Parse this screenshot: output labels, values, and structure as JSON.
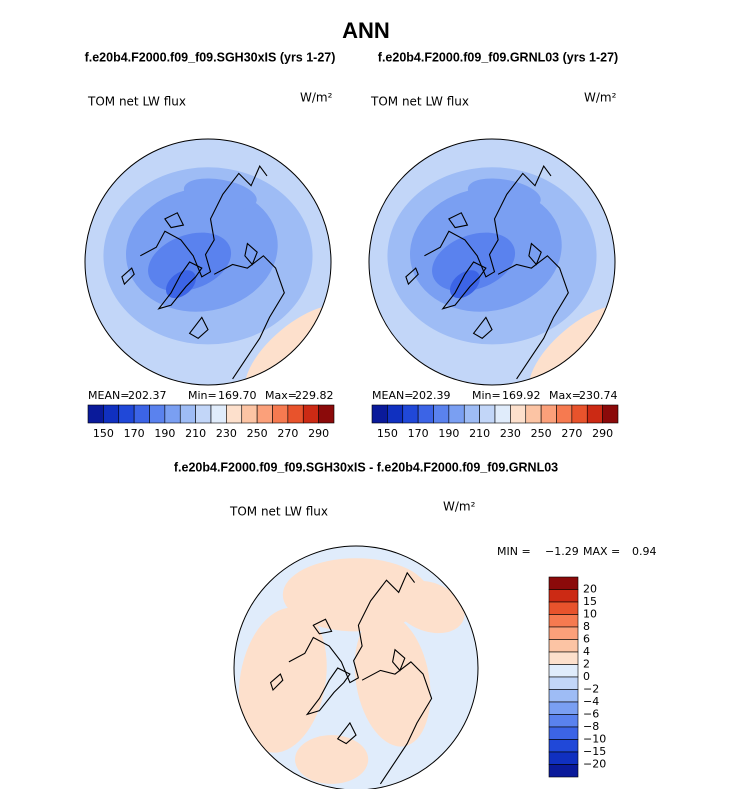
{
  "title": "ANN",
  "panels": [
    {
      "case": "f.e20b4.F2000.f09_f09.SGH30xIS (yrs 1-27)",
      "variable": "TOM net LW flux",
      "units": "W/m²",
      "stats": {
        "mean_label": "MEAN=",
        "mean": "202.37",
        "min_label": "Min=",
        "min": "169.70",
        "max_label": "Max=",
        "max": "229.82"
      },
      "colorbar_labels": [
        150,
        170,
        190,
        210,
        230,
        250,
        270,
        290
      ]
    },
    {
      "case": "f.e20b4.F2000.f09_f09.GRNL03 (yrs 1-27)",
      "variable": "TOM net LW flux",
      "units": "W/m²",
      "stats": {
        "mean_label": "MEAN=",
        "mean": "202.39",
        "min_label": "Min=",
        "min": "169.92",
        "max_label": "Max=",
        "max": "230.74"
      },
      "colorbar_labels": [
        150,
        170,
        190,
        210,
        230,
        250,
        270,
        290
      ]
    }
  ],
  "difference": {
    "title": "f.e20b4.F2000.f09_f09.SGH30xIS - f.e20b4.F2000.f09_f09.GRNL03",
    "variable": "TOM net LW flux",
    "units": "W/m²",
    "stats": {
      "min_label": "MIN =",
      "min": "−1.29",
      "max_label": "MAX =",
      "max": "0.94"
    },
    "colorbar_labels": [
      "20",
      "15",
      "10",
      "8",
      "6",
      "4",
      "2",
      "0",
      "−2",
      "−4",
      "−6",
      "−8",
      "−10",
      "−15",
      "−20"
    ]
  }
}
